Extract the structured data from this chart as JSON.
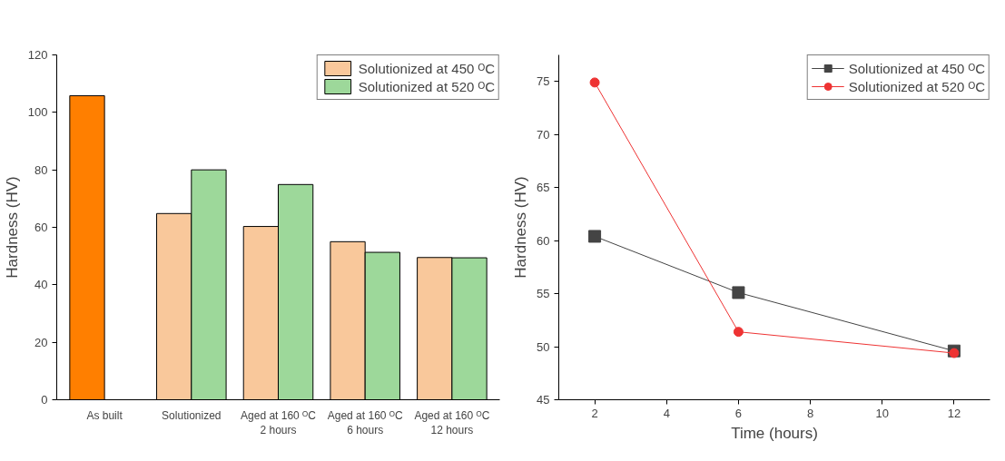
{
  "chart_data": [
    {
      "type": "bar",
      "ylabel": "Hardness (HV)",
      "categories": [
        "As built",
        "Solutionized",
        "Aged at 160 ᴼC\n2 hours",
        "Aged at 160 ᴼC\n6 hours",
        "Aged at 160 ᴼC\n12 hours"
      ],
      "series": [
        {
          "name": "Solutionized at 450 ᴼC",
          "color": "#f9c89b",
          "colors": [
            "#ff7f00",
            "#f9c89b",
            "#f9c89b",
            "#f9c89b",
            "#f9c89b"
          ],
          "values": [
            105.8,
            64.8,
            60.3,
            55.0,
            49.5
          ]
        },
        {
          "name": "Solutionized at 520 ᴼC",
          "color": "#9dd89a",
          "values": [
            null,
            80.0,
            74.9,
            51.3,
            49.4
          ]
        }
      ],
      "ylim": [
        0,
        120
      ],
      "yticks": [
        0,
        20,
        40,
        60,
        80,
        100,
        120
      ],
      "grid": false,
      "legend": "top right"
    },
    {
      "type": "line",
      "xlabel": "Time (hours)",
      "ylabel": "Hardness (HV)",
      "x": [
        2,
        6,
        12
      ],
      "series": [
        {
          "name": "Solutionized at 450 ᴼC",
          "color": "#444444",
          "marker": "square",
          "values": [
            60.4,
            55.1,
            49.6
          ]
        },
        {
          "name": "Solutionized at 520 ᴼC",
          "color": "#ee3333",
          "marker": "circle",
          "values": [
            74.9,
            51.4,
            49.4
          ]
        }
      ],
      "xlim": [
        1,
        13
      ],
      "xticks": [
        2,
        4,
        6,
        8,
        10,
        12
      ],
      "ylim": [
        45,
        77.5
      ],
      "yticks": [
        45,
        50,
        55,
        60,
        65,
        70,
        75
      ],
      "grid": false,
      "legend": "top right",
      "line_style": "solid"
    }
  ]
}
